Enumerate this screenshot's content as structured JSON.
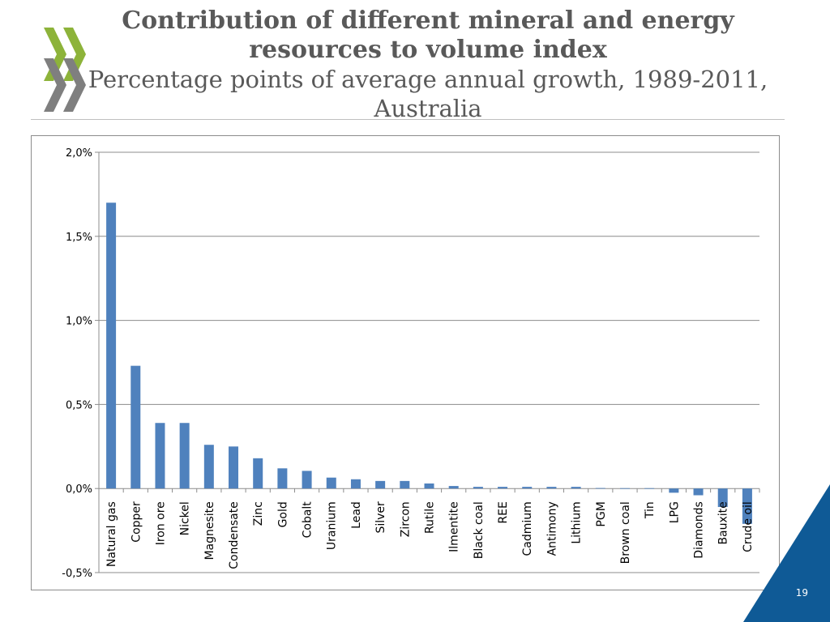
{
  "slide": {
    "page_number": "19"
  },
  "colors": {
    "bar": "#4F81BD",
    "title_text": "#595959",
    "logo_green": "#8DB33A",
    "logo_gray": "#7F7F7F",
    "corner_blue": "#0F5A96"
  },
  "chart_data": {
    "type": "bar",
    "title": "Contribution of different mineral and energy resources to volume index",
    "subtitle": "Percentage points of average annual growth, 1989-2011, Australia",
    "xlabel": "",
    "ylabel": "",
    "ylim": [
      -0.5,
      2.0
    ],
    "yticks": [
      -0.5,
      0.0,
      0.5,
      1.0,
      1.5,
      2.0
    ],
    "ytick_labels": [
      "-0,5%",
      "0,0%",
      "0,5%",
      "1,0%",
      "1,5%",
      "2,0%"
    ],
    "grid": true,
    "categories": [
      "Natural gas",
      "Copper",
      "Iron ore",
      "Nickel",
      "Magnesite",
      "Condensate",
      "Zinc",
      "Gold",
      "Cobalt",
      "Uranium",
      "Lead",
      "Silver",
      "Zircon",
      "Rutile",
      "Ilmentite",
      "Black coal",
      "REE",
      "Cadmium",
      "Antimony",
      "Lithium",
      "PGM",
      "Brown coal",
      "Tin",
      "LPG",
      "Diamonds",
      "Bauxite",
      "Crude oil"
    ],
    "values": [
      1.7,
      0.73,
      0.39,
      0.39,
      0.26,
      0.25,
      0.18,
      0.12,
      0.105,
      0.065,
      0.055,
      0.045,
      0.045,
      0.03,
      0.015,
      0.01,
      0.01,
      0.01,
      0.01,
      0.01,
      0.003,
      0.002,
      0.002,
      -0.025,
      -0.04,
      -0.11,
      -0.21
    ]
  }
}
